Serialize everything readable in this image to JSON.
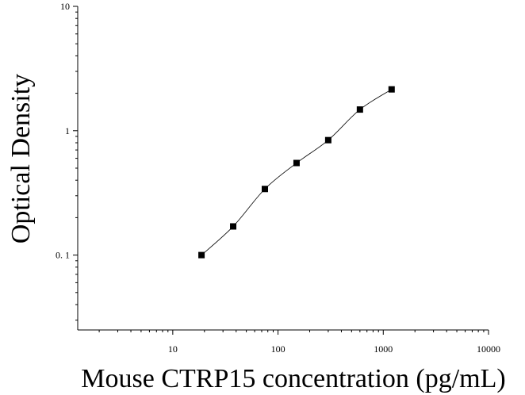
{
  "chart_data": {
    "type": "scatter",
    "title": "",
    "xlabel": "Mouse CTRP15 concentration (pg/mL)",
    "ylabel": "Optical Density",
    "x_scale": "log",
    "y_scale": "log",
    "xlim": [
      1.25,
      10000
    ],
    "ylim": [
      0.025,
      10
    ],
    "x_ticks": [
      {
        "value": 10,
        "label": "10"
      },
      {
        "value": 100,
        "label": "100"
      },
      {
        "value": 1000,
        "label": "1000"
      },
      {
        "value": 10000,
        "label": "10000"
      }
    ],
    "y_ticks": [
      {
        "value": 0.1,
        "label": "0. 1"
      },
      {
        "value": 1,
        "label": "1"
      },
      {
        "value": 10,
        "label": "10"
      }
    ],
    "grid": false,
    "series": [
      {
        "marker": "square",
        "color": "#000000",
        "points": [
          {
            "x": 18.75,
            "y": 0.1
          },
          {
            "x": 37.5,
            "y": 0.17
          },
          {
            "x": 75,
            "y": 0.34
          },
          {
            "x": 150,
            "y": 0.55
          },
          {
            "x": 300,
            "y": 0.84
          },
          {
            "x": 600,
            "y": 1.48
          },
          {
            "x": 1200,
            "y": 2.15
          }
        ]
      }
    ]
  }
}
